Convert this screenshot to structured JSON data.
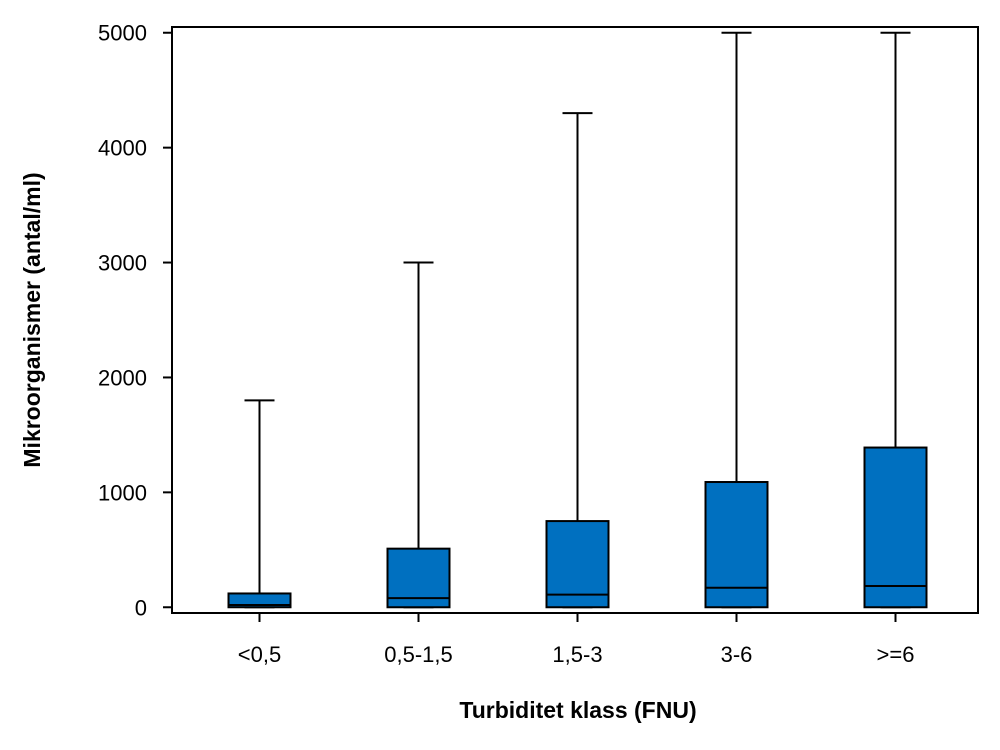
{
  "chart_data": {
    "type": "boxplot",
    "title": "",
    "xlabel": "Turbiditet klass (FNU)",
    "ylabel": "Mikroorganismer (antal/ml)",
    "ylim": [
      -50,
      5050
    ],
    "yticks": [
      0,
      1000,
      2000,
      3000,
      4000,
      5000
    ],
    "ytick_labels": [
      "0",
      "1000",
      "2000",
      "3000",
      "4000",
      "5000"
    ],
    "grid": false,
    "box_color": "#0070C0",
    "categories": [
      "<0,5",
      "0,5-1,5",
      "1,5-3",
      "3-6",
      ">=6"
    ],
    "boxes": [
      {
        "category": "<0,5",
        "min": 0,
        "q1": 0,
        "median": 20,
        "q3": 120,
        "max": 1800
      },
      {
        "category": "0,5-1,5",
        "min": 0,
        "q1": 0,
        "median": 80,
        "q3": 510,
        "max": 3000
      },
      {
        "category": "1,5-3",
        "min": 0,
        "q1": 0,
        "median": 110,
        "q3": 750,
        "max": 4300
      },
      {
        "category": "3-6",
        "min": 0,
        "q1": 0,
        "median": 170,
        "q3": 1090,
        "max": 5000
      },
      {
        "category": ">=6",
        "min": 0,
        "q1": 0,
        "median": 185,
        "q3": 1390,
        "max": 5000
      }
    ]
  }
}
